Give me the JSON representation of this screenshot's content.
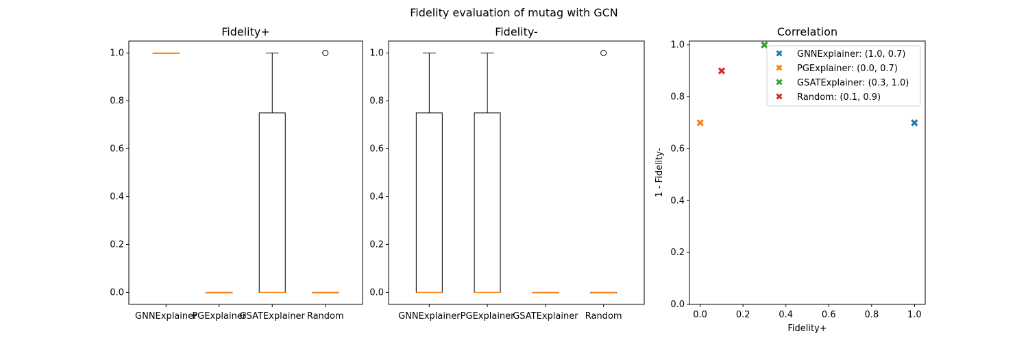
{
  "figure": {
    "suptitle": "Fidelity evaluation of mutag with GCN"
  },
  "chart_data": [
    {
      "type": "box",
      "title": "Fidelity+",
      "xlabel": "",
      "ylabel": "",
      "ylim": [
        -0.05,
        1.05
      ],
      "yticks": [
        0.0,
        0.2,
        0.4,
        0.6,
        0.8,
        1.0
      ],
      "categories": [
        "GNNExplainer",
        "PGExplainer",
        "GSATExplainer",
        "Random"
      ],
      "boxes": [
        {
          "q1": 1.0,
          "median": 1.0,
          "q3": 1.0,
          "whisker_low": 1.0,
          "whisker_high": 1.0,
          "outliers": []
        },
        {
          "q1": 0.0,
          "median": 0.0,
          "q3": 0.0,
          "whisker_low": 0.0,
          "whisker_high": 0.0,
          "outliers": []
        },
        {
          "q1": 0.0,
          "median": 0.0,
          "q3": 0.75,
          "whisker_low": 0.0,
          "whisker_high": 1.0,
          "outliers": []
        },
        {
          "q1": 0.0,
          "median": 0.0,
          "q3": 0.0,
          "whisker_low": 0.0,
          "whisker_high": 0.0,
          "outliers": [
            1.0
          ]
        }
      ]
    },
    {
      "type": "box",
      "title": "Fidelity-",
      "xlabel": "",
      "ylabel": "",
      "ylim": [
        -0.05,
        1.05
      ],
      "yticks": [
        0.0,
        0.2,
        0.4,
        0.6,
        0.8,
        1.0
      ],
      "categories": [
        "GNNExplainer",
        "PGExplainer",
        "GSATExplainer",
        "Random"
      ],
      "boxes": [
        {
          "q1": 0.0,
          "median": 0.0,
          "q3": 0.75,
          "whisker_low": 0.0,
          "whisker_high": 1.0,
          "outliers": []
        },
        {
          "q1": 0.0,
          "median": 0.0,
          "q3": 0.75,
          "whisker_low": 0.0,
          "whisker_high": 1.0,
          "outliers": []
        },
        {
          "q1": 0.0,
          "median": 0.0,
          "q3": 0.0,
          "whisker_low": 0.0,
          "whisker_high": 0.0,
          "outliers": []
        },
        {
          "q1": 0.0,
          "median": 0.0,
          "q3": 0.0,
          "whisker_low": 0.0,
          "whisker_high": 0.0,
          "outliers": [
            1.0
          ]
        }
      ]
    },
    {
      "type": "scatter",
      "title": "Correlation",
      "xlabel": "Fidelity+",
      "ylabel": "1 - Fidelity-",
      "xlim": [
        -0.05,
        1.05
      ],
      "ylim": [
        0.0,
        1.015
      ],
      "xticks": [
        0.0,
        0.2,
        0.4,
        0.6,
        0.8,
        1.0
      ],
      "yticks": [
        0.0,
        0.2,
        0.4,
        0.6,
        0.8,
        1.0
      ],
      "legend_position": "upper right",
      "series": [
        {
          "name": "GNNExplainer: (1.0, 0.7)",
          "x": 1.0,
          "y": 0.7,
          "color": "#1f77b4"
        },
        {
          "name": "PGExplainer: (0.0, 0.7)",
          "x": 0.0,
          "y": 0.7,
          "color": "#ff7f0e"
        },
        {
          "name": "GSATExplainer: (0.3, 1.0)",
          "x": 0.3,
          "y": 1.0,
          "color": "#2ca02c"
        },
        {
          "name": "Random: (0.1, 0.9)",
          "x": 0.1,
          "y": 0.9,
          "color": "#d62728"
        }
      ]
    }
  ],
  "style": {
    "median_color": "#ff7f0e",
    "box_color": "#000000"
  }
}
